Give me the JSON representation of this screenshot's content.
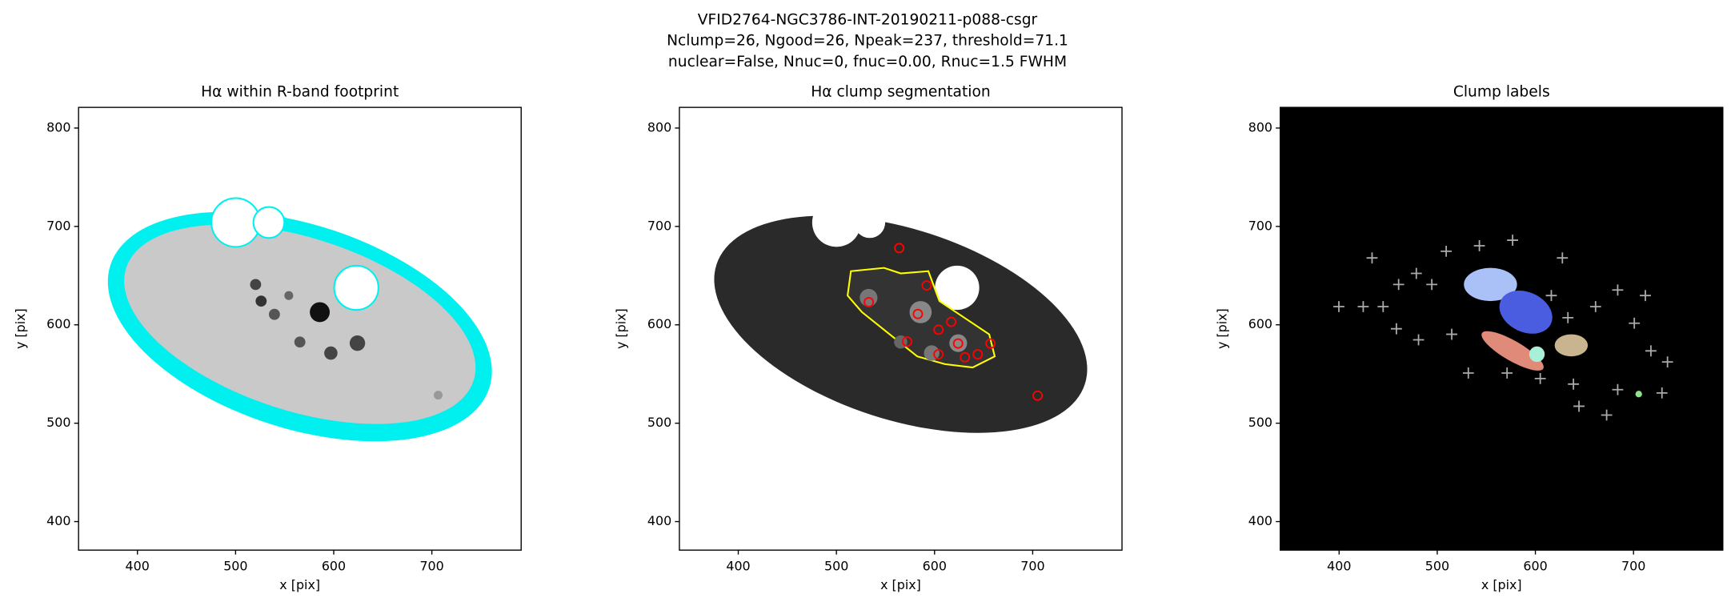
{
  "suptitle": [
    "VFID2764-NGC3786-INT-20190211-p088-csgr",
    "Nclump=26, Ngood=26, Npeak=237, threshold=71.1",
    "nuclear=False, Nnuc=0, fnuc=0.00, Rnuc=1.5 FWHM"
  ],
  "chart_data": [
    {
      "type": "image",
      "title": "Hα within R-band footprint",
      "xlabel": "x [pix]",
      "ylabel": "y [pix]",
      "xlim": [
        340,
        791
      ],
      "ylim": [
        371,
        821
      ],
      "xticks": [
        400,
        500,
        600,
        700
      ],
      "yticks": [
        400,
        500,
        600,
        700,
        800
      ]
    },
    {
      "type": "image",
      "title": "Hα clump segmentation",
      "xlabel": "x [pix]",
      "ylabel": "y [pix]",
      "xlim": [
        340,
        791
      ],
      "ylim": [
        371,
        821
      ],
      "xticks": [
        400,
        500,
        600,
        700
      ],
      "yticks": [
        400,
        500,
        600,
        700,
        800
      ],
      "clump_color": "#ff0000",
      "clumps": {
        "x": [
          564,
          533,
          583,
          592,
          604,
          617,
          572,
          604,
          624,
          631,
          644,
          657,
          705
        ],
        "y": [
          678,
          623,
          611,
          640,
          595,
          603,
          583,
          570,
          581,
          567,
          570,
          581,
          528
        ]
      }
    },
    {
      "type": "image",
      "title": "Clump labels",
      "xlabel": "x [pix]",
      "ylabel": "y [pix]",
      "xlim": [
        340,
        791
      ],
      "ylim": [
        371,
        821
      ],
      "xticks": [
        400,
        500,
        600,
        700
      ],
      "yticks": [
        400,
        500,
        600,
        700,
        800
      ]
    }
  ]
}
